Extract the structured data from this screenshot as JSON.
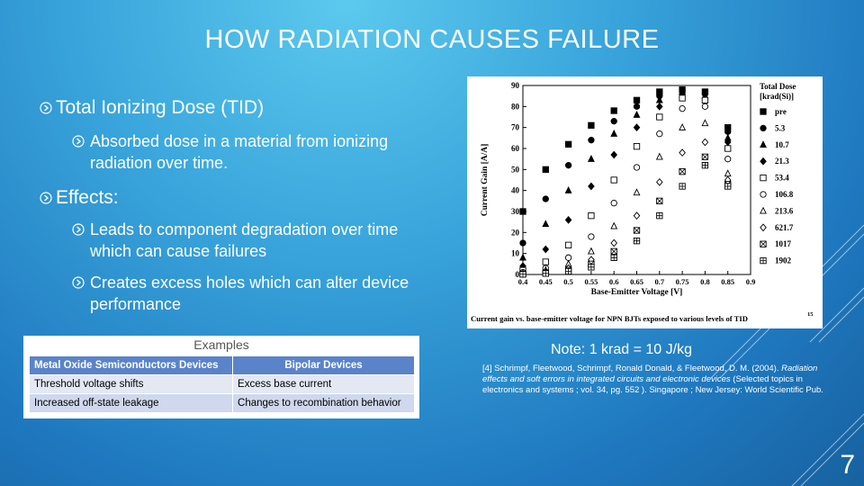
{
  "slide": {
    "title": "HOW RADIATION CAUSES FAILURE",
    "page_number": "7",
    "accent_color": "#3aa6dc"
  },
  "bullets": {
    "tid": "Total Ionizing Dose (TID)",
    "tid_sub": "Absorbed dose in a material from ionizing radiation over time.",
    "effects": "Effects:",
    "effects_sub1": "Leads to component degradation over time which can cause failures",
    "effects_sub2": "Creates excess holes which can alter device performance"
  },
  "examples": {
    "title": "Examples",
    "headers": [
      "Metal Oxide Semiconductors Devices",
      "Bipolar Devices"
    ],
    "rows": [
      [
        "Threshold voltage shifts",
        "Excess base current"
      ],
      [
        "Increased off-state leakage",
        "Changes to recombination behavior"
      ]
    ]
  },
  "note": "Note: 1 krad = 10 J/kg",
  "reference": {
    "prefix": "[4] Schrimpf, Fleetwood, Schrimpf, Ronald Donald, & Fleetwood, D. M. (2004).",
    "title": "Radiation effects and soft errors in integrated circuits and electronic devices",
    "suffix": "(Selected topics in electronics and systems ; vol. 34, pg. 552 ). Singapore ; New Jersey: World Scientific Pub."
  },
  "chart_data": {
    "type": "scatter",
    "caption": "Current gain vs. base-emitter voltage for NPN BJTs exposed to various levels of TID",
    "caption_sup": "15",
    "xlabel": "Base-Emitter Voltage [V]",
    "ylabel": "Current Gain [A/A]",
    "xlim": [
      0.4,
      0.9
    ],
    "ylim": [
      0,
      90
    ],
    "x_ticks": [
      "0.4",
      "0.45",
      "0.5",
      "0.55",
      "0.6",
      "0.65",
      "0.7",
      "0.75",
      "0.8",
      "0.85",
      "0.9"
    ],
    "y_ticks": [
      "0",
      "10",
      "20",
      "30",
      "40",
      "50",
      "60",
      "70",
      "80",
      "90"
    ],
    "legend_title": "Total Dose",
    "legend_unit": "[krad(Si)]",
    "legend_placement": "right",
    "series": [
      {
        "name": "pre",
        "marker": "square-filled",
        "x": [
          0.4,
          0.45,
          0.5,
          0.55,
          0.6,
          0.65,
          0.7,
          0.75,
          0.8,
          0.85
        ],
        "y": [
          30,
          50,
          62,
          71,
          78,
          83,
          87,
          88,
          87,
          70
        ]
      },
      {
        "name": "5.3",
        "marker": "circle-filled",
        "x": [
          0.4,
          0.45,
          0.5,
          0.55,
          0.6,
          0.65,
          0.7,
          0.75,
          0.8,
          0.85
        ],
        "y": [
          15,
          36,
          52,
          64,
          73,
          80,
          85,
          88,
          86,
          68
        ]
      },
      {
        "name": "10.7",
        "marker": "triangle-filled",
        "x": [
          0.4,
          0.45,
          0.5,
          0.55,
          0.6,
          0.65,
          0.7,
          0.75,
          0.8,
          0.85
        ],
        "y": [
          8,
          24,
          40,
          55,
          67,
          76,
          83,
          87,
          85,
          65
        ]
      },
      {
        "name": "21.3",
        "marker": "diamond-filled",
        "x": [
          0.4,
          0.45,
          0.5,
          0.55,
          0.6,
          0.65,
          0.7,
          0.75,
          0.8,
          0.85
        ],
        "y": [
          4,
          12,
          26,
          42,
          57,
          70,
          80,
          86,
          84,
          63
        ]
      },
      {
        "name": "53.4",
        "marker": "square-open",
        "x": [
          0.4,
          0.45,
          0.5,
          0.55,
          0.6,
          0.65,
          0.7,
          0.75,
          0.8,
          0.85
        ],
        "y": [
          2,
          6,
          14,
          28,
          45,
          61,
          75,
          84,
          83,
          60
        ]
      },
      {
        "name": "106.8",
        "marker": "circle-open",
        "x": [
          0.4,
          0.45,
          0.5,
          0.55,
          0.6,
          0.65,
          0.7,
          0.75,
          0.8,
          0.85
        ],
        "y": [
          1,
          3,
          8,
          18,
          34,
          51,
          67,
          79,
          80,
          55
        ]
      },
      {
        "name": "213.6",
        "marker": "triangle-open",
        "x": [
          0.4,
          0.45,
          0.5,
          0.55,
          0.6,
          0.65,
          0.7,
          0.75,
          0.8,
          0.85
        ],
        "y": [
          0.5,
          2,
          5,
          11,
          23,
          39,
          56,
          70,
          72,
          48
        ]
      },
      {
        "name": "621.7",
        "marker": "diamond-open",
        "x": [
          0.4,
          0.45,
          0.5,
          0.55,
          0.6,
          0.65,
          0.7,
          0.75,
          0.8,
          0.85
        ],
        "y": [
          0.3,
          1,
          3,
          7,
          15,
          28,
          44,
          58,
          63,
          45
        ]
      },
      {
        "name": "1017",
        "marker": "square-x",
        "x": [
          0.4,
          0.45,
          0.5,
          0.55,
          0.6,
          0.65,
          0.7,
          0.75,
          0.8,
          0.85
        ],
        "y": [
          0.2,
          0.8,
          2,
          5,
          11,
          21,
          35,
          49,
          56,
          43
        ]
      },
      {
        "name": "1902",
        "marker": "square-cross",
        "x": [
          0.4,
          0.45,
          0.5,
          0.55,
          0.6,
          0.65,
          0.7,
          0.75,
          0.8,
          0.85
        ],
        "y": [
          0.1,
          0.5,
          1.5,
          3.5,
          8,
          16,
          28,
          42,
          52,
          42
        ]
      }
    ]
  }
}
